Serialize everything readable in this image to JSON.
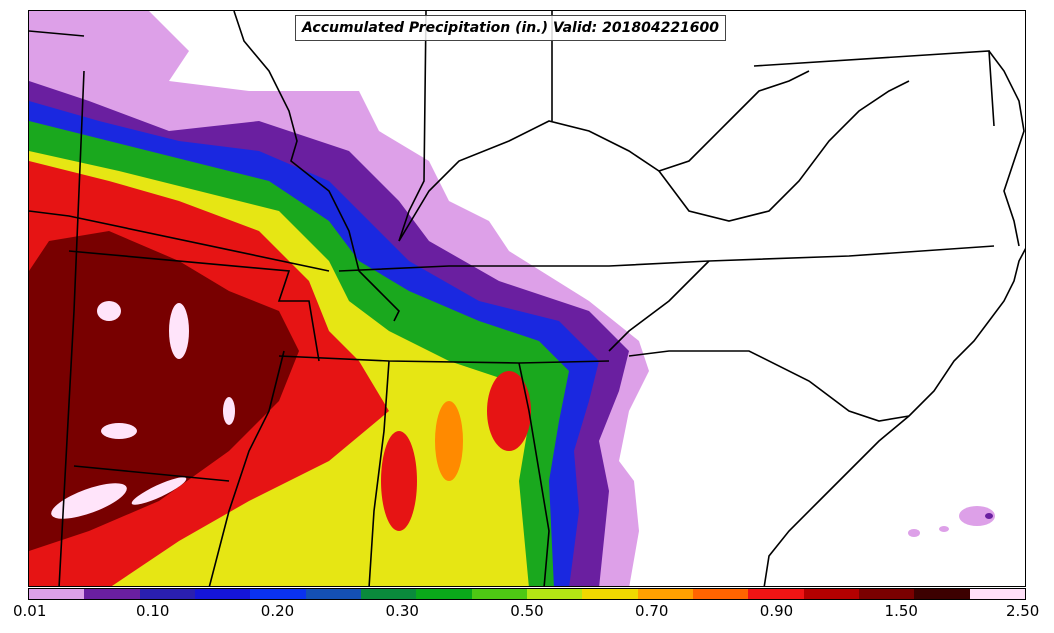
{
  "title": "Accumulated Precipitation (in.) Valid: 201804221600",
  "colorbar": {
    "colors": [
      "#dda0e8",
      "#6a1fa0",
      "#2a1fb0",
      "#1515d8",
      "#0a32f0",
      "#1450b4",
      "#0a8a3c",
      "#0aa81a",
      "#4ec814",
      "#b4e614",
      "#f0d800",
      "#ffa000",
      "#ff6400",
      "#f01414",
      "#b40000",
      "#7a0000",
      "#3c0000",
      "#ffe0f8"
    ],
    "tick_labels": [
      "0.01",
      "0.10",
      "0.20",
      "0.30",
      "0.50",
      "0.70",
      "0.90",
      "1.50",
      "2.50"
    ]
  },
  "legend_levels": {
    "light": "#dda0e8",
    "purple": "#6a1fa0",
    "blue": "#1a28e0",
    "green": "#1aa81e",
    "yellow": "#e6e614",
    "orange": "#ff8a00",
    "red": "#e61414",
    "darkred": "#780000",
    "extreme": "#ffe4fa"
  }
}
